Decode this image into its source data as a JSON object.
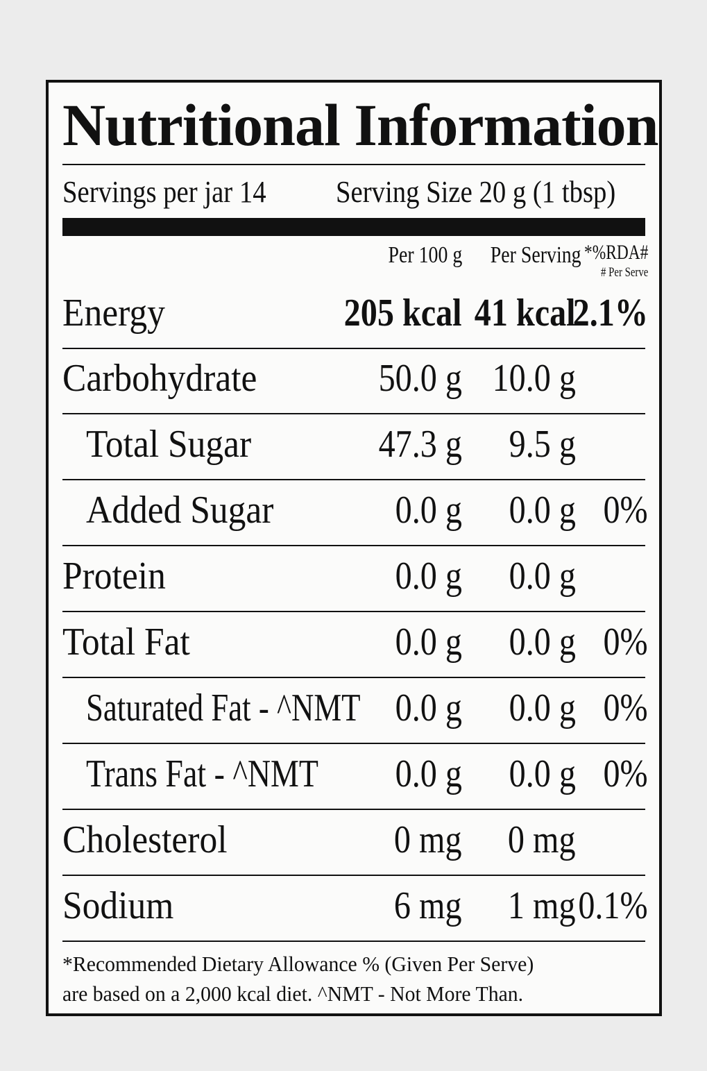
{
  "title": "Nutritional Information",
  "servings_per_jar": "Servings per jar 14",
  "serving_size": "Serving Size  20 g (1 tbsp)",
  "columns": {
    "per_100g": "Per 100 g",
    "per_serving": "Per Serving",
    "rda": "*%RDA#",
    "rda_sub": "# Per Serve"
  },
  "rows": [
    {
      "name": "Energy",
      "per_100g": "205 kcal",
      "per_serving": "41 kcal",
      "rda": "2.1%"
    },
    {
      "name": "Carbohydrate",
      "per_100g": "50.0 g",
      "per_serving": "10.0 g",
      "rda": ""
    },
    {
      "name": "Total Sugar",
      "per_100g": "47.3 g",
      "per_serving": "9.5 g",
      "rda": ""
    },
    {
      "name": "Added Sugar",
      "per_100g": "0.0 g",
      "per_serving": "0.0 g",
      "rda": "0%"
    },
    {
      "name": "Protein",
      "per_100g": "0.0 g",
      "per_serving": "0.0 g",
      "rda": ""
    },
    {
      "name": "Total Fat",
      "per_100g": "0.0 g",
      "per_serving": "0.0 g",
      "rda": "0%"
    },
    {
      "name": "Saturated Fat - ^NMT",
      "per_100g": "0.0 g",
      "per_serving": "0.0 g",
      "rda": "0%"
    },
    {
      "name": "Trans Fat - ^NMT",
      "per_100g": "0.0 g",
      "per_serving": "0.0 g",
      "rda": "0%"
    },
    {
      "name": "Cholesterol",
      "per_100g": "0 mg",
      "per_serving": "0 mg",
      "rda": ""
    },
    {
      "name": "Sodium",
      "per_100g": "6 mg",
      "per_serving": "1 mg",
      "rda": "0.1%"
    }
  ],
  "footnote": [
    "*Recommended Dietary Allowance % (Given Per Serve)",
    "are based on a 2,000 kcal diet. ^NMT - Not More Than."
  ]
}
